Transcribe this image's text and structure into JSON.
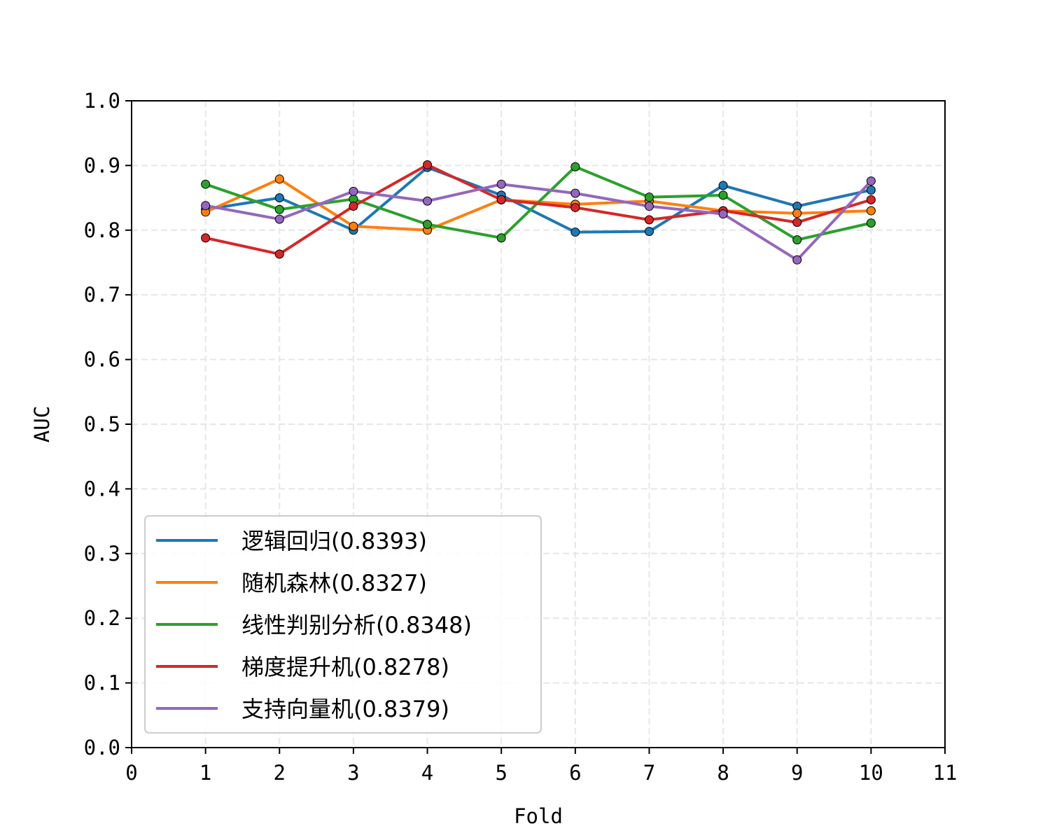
{
  "chart_data": {
    "type": "line",
    "title": "",
    "xlabel": "Fold",
    "ylabel": "AUC",
    "xlim": [
      0,
      11
    ],
    "ylim": [
      0.0,
      1.0
    ],
    "x_ticks": [
      "0",
      "1",
      "2",
      "3",
      "4",
      "5",
      "6",
      "7",
      "8",
      "9",
      "10",
      "11"
    ],
    "y_ticks": [
      "0.0",
      "0.1",
      "0.2",
      "0.3",
      "0.4",
      "0.5",
      "0.6",
      "0.7",
      "0.8",
      "0.9",
      "1.0"
    ],
    "grid": true,
    "legend_position": "lower-left",
    "x": [
      1,
      2,
      3,
      4,
      5,
      6,
      7,
      8,
      9,
      10
    ],
    "series": [
      {
        "name": "逻辑回归(0.8393)",
        "color": "#1f77b4",
        "values": [
          0.832,
          0.85,
          0.8,
          0.897,
          0.854,
          0.797,
          0.798,
          0.869,
          0.837,
          0.862
        ]
      },
      {
        "name": "随机森林(0.8327)",
        "color": "#ff7f0e",
        "values": [
          0.828,
          0.879,
          0.806,
          0.8,
          0.847,
          0.84,
          0.845,
          0.83,
          0.826,
          0.83
        ]
      },
      {
        "name": "线性判别分析(0.8348)",
        "color": "#2ca02c",
        "values": [
          0.871,
          0.832,
          0.848,
          0.809,
          0.788,
          0.898,
          0.851,
          0.854,
          0.785,
          0.811
        ]
      },
      {
        "name": "梯度提升机(0.8278)",
        "color": "#d62728",
        "values": [
          0.788,
          0.763,
          0.837,
          0.901,
          0.847,
          0.835,
          0.816,
          0.83,
          0.812,
          0.847
        ]
      },
      {
        "name": "支持向量机(0.8379)",
        "color": "#9467bd",
        "values": [
          0.838,
          0.817,
          0.86,
          0.845,
          0.871,
          0.857,
          0.837,
          0.825,
          0.754,
          0.876
        ]
      }
    ]
  }
}
